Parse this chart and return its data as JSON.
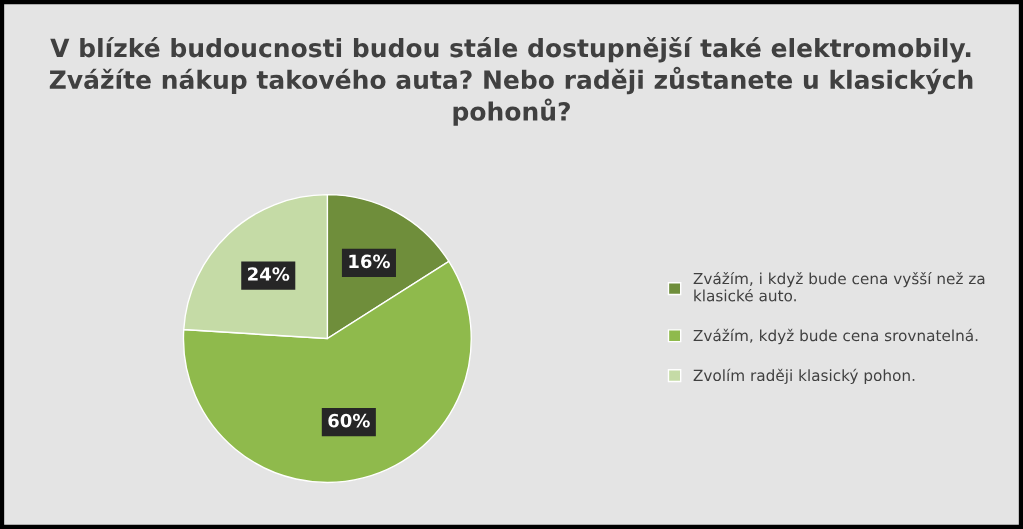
{
  "chart_data": {
    "type": "pie",
    "title": "V blízké budoucnosti budou stále dostupnější také elektromobily. Zvážíte nákup takového auta? Nebo raději zůstanete u klasických pohonů?",
    "categories": [
      "Zvážím, i když bude cena vyšší než za klasické auto.",
      "Zvážím, když bude cena srovnatelná.",
      "Zvolím raději klasický pohon."
    ],
    "values": [
      16,
      60,
      24
    ],
    "colors": [
      "#6f8e3b",
      "#8fba4c",
      "#c5dba6"
    ],
    "value_labels": [
      "16%",
      "60%",
      "24%"
    ],
    "legend": "right"
  }
}
